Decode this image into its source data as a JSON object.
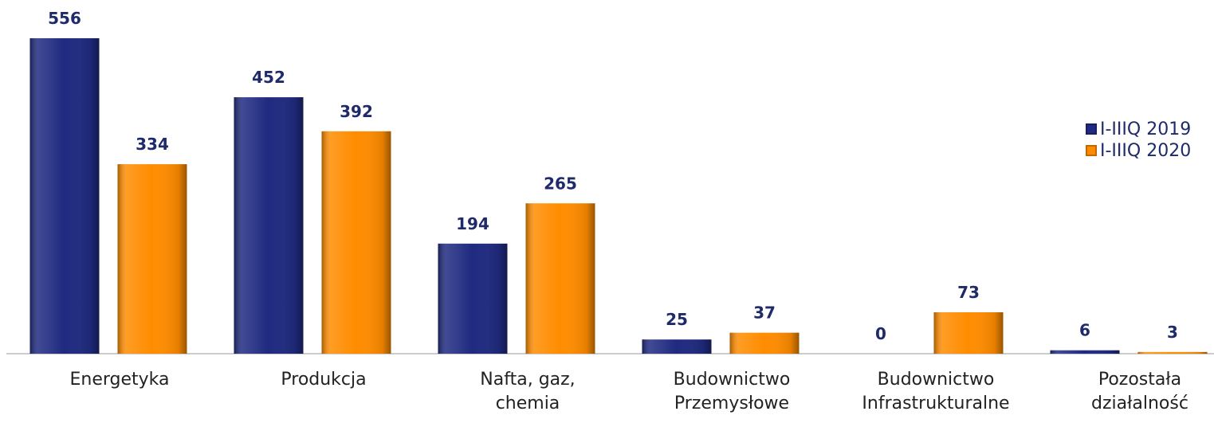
{
  "chart_data": {
    "type": "bar",
    "categories": [
      "Energetyka",
      "Produkcja",
      "Nafta, gaz,\nchemia",
      "Budownictwo\nPrzemysłowe",
      "Budownictwo\nInfrastrukturalne",
      "Pozostała\ndziałalność"
    ],
    "series": [
      {
        "name": "I-IIIQ 2019",
        "color": "#1f2a80",
        "values": [
          556,
          452,
          194,
          25,
          0,
          6
        ]
      },
      {
        "name": "I-IIIQ 2020",
        "color": "#ff8c00",
        "values": [
          334,
          392,
          265,
          37,
          73,
          3
        ]
      }
    ],
    "legend": "right"
  }
}
